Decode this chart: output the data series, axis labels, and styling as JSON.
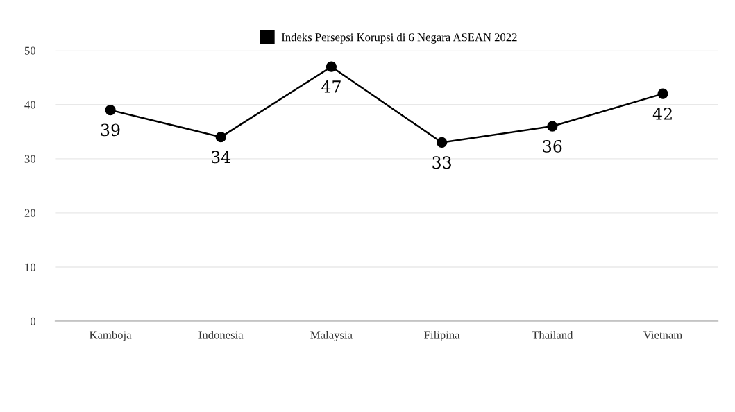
{
  "chart_data": {
    "type": "line",
    "categories": [
      "Kamboja",
      "Indonesia",
      "Malaysia",
      "Filipina",
      "Thailand",
      "Vietnam"
    ],
    "series": [
      {
        "name": "Indeks Persepsi Korupsi di 6 Negara ASEAN 2022",
        "color": "#000000",
        "values": [
          39,
          34,
          47,
          33,
          36,
          42
        ]
      }
    ],
    "ylim": [
      0,
      50
    ],
    "yticks": [
      0,
      10,
      20,
      30,
      40,
      50
    ],
    "grid": "y",
    "legend": "top",
    "marker": "circle",
    "line_style": "solid",
    "data_labels": true
  }
}
